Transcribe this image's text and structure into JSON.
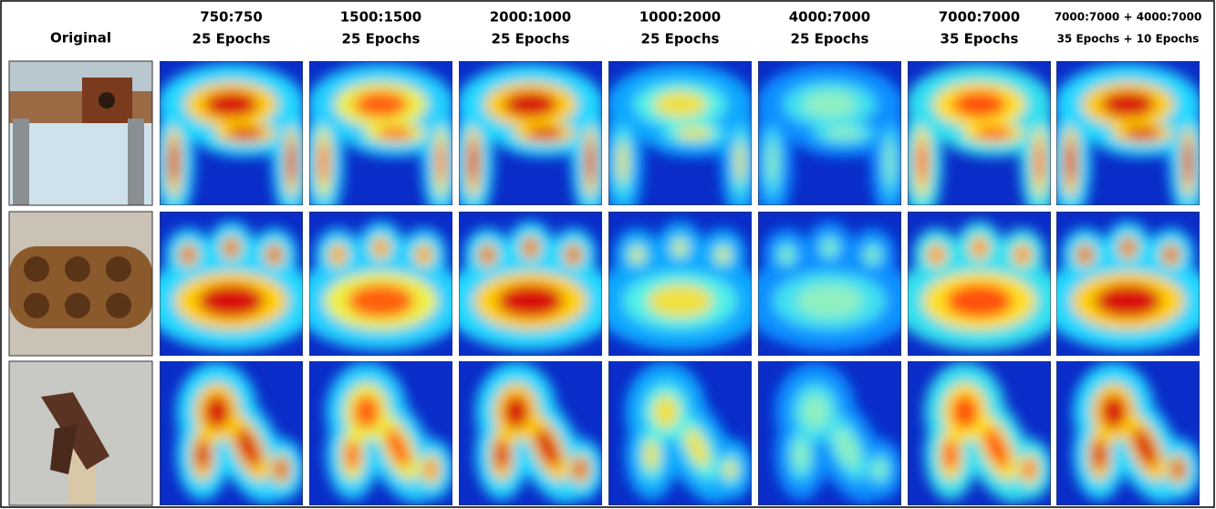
{
  "columns": [
    {
      "title": "Original"
    },
    {
      "title": "750:750",
      "subtitle": "25 Epochs"
    },
    {
      "title": "1500:1500",
      "subtitle": "25 Epochs"
    },
    {
      "title": "2000:1000",
      "subtitle": "25 Epochs"
    },
    {
      "title": "1000:2000",
      "subtitle": "25 Epochs"
    },
    {
      "title": "4000:7000",
      "subtitle": "25 Epochs"
    },
    {
      "title": "7000:7000",
      "subtitle": "35 Epochs"
    },
    {
      "title": "7000:7000 + 4000:7000",
      "subtitle": "35 Epochs + 10 Epochs"
    }
  ]
}
